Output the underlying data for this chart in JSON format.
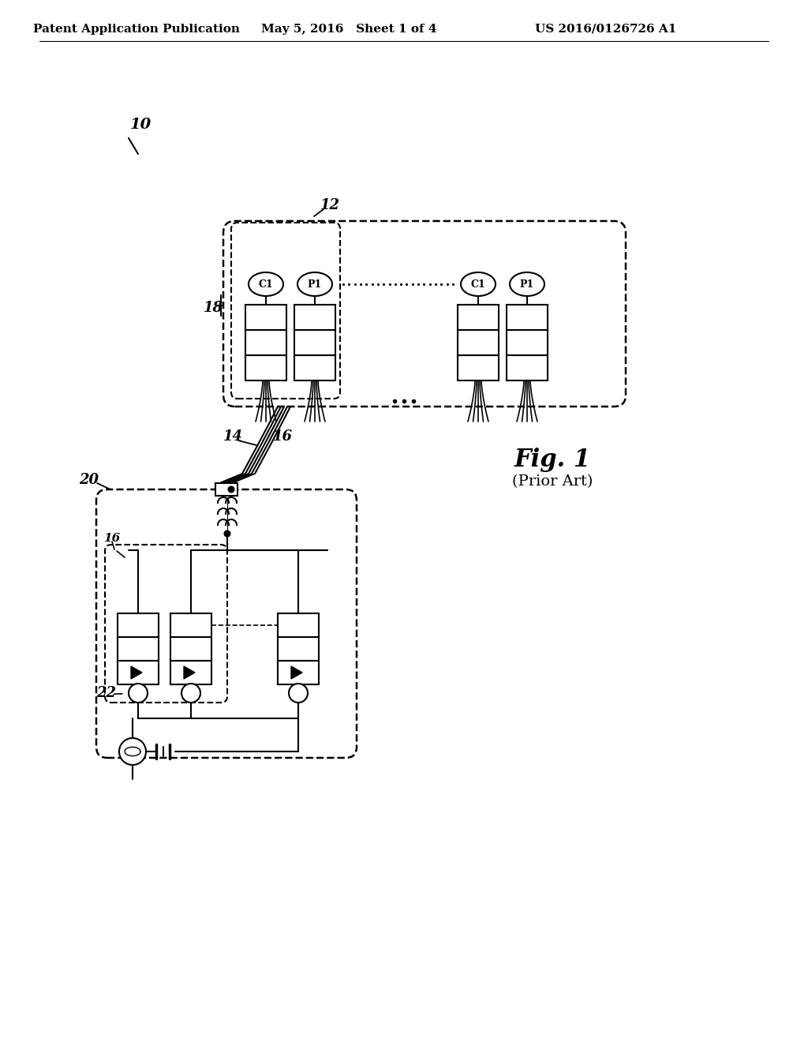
{
  "bg_color": "#ffffff",
  "header_left": "Patent Application Publication",
  "header_mid": "May 5, 2016   Sheet 1 of 4",
  "header_right": "US 2016/0126726 A1",
  "fig_label": "Fig. 1",
  "fig_sublabel": "(Prior Art)",
  "label_10": "10",
  "label_12": "12",
  "label_14": "14",
  "label_16": "16",
  "label_18": "18",
  "label_20": "20",
  "label_22": "22"
}
